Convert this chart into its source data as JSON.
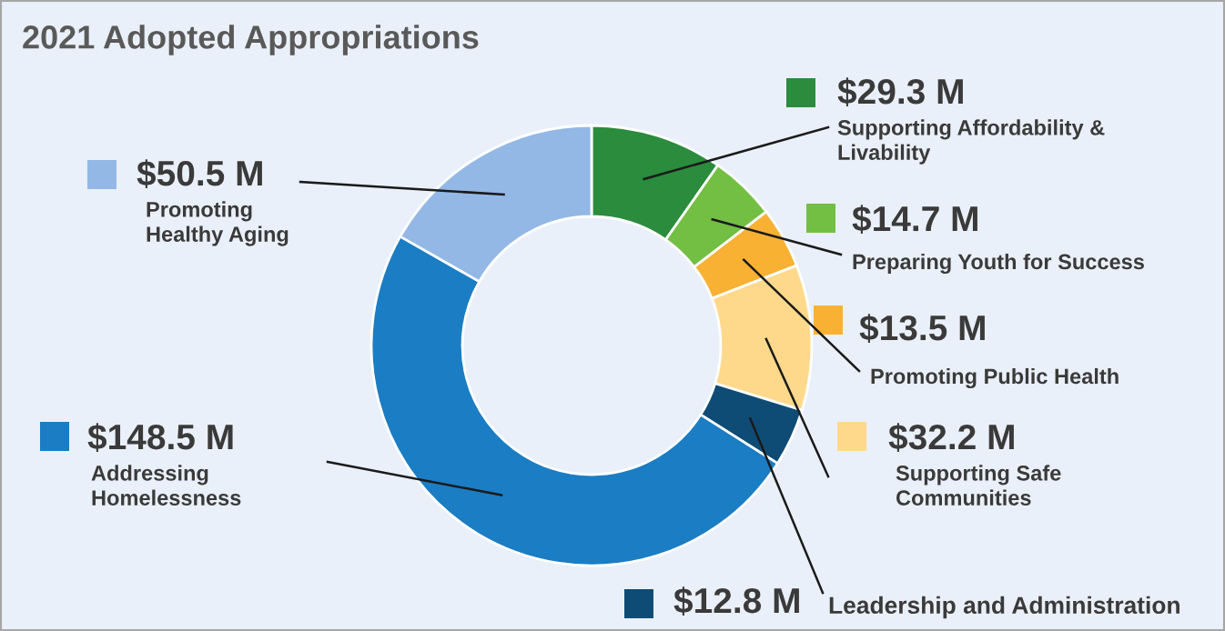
{
  "chart_data": {
    "type": "donut",
    "title": "2021 Adopted Appropriations",
    "categories": [
      "Supporting Affordability & Livability",
      "Preparing Youth for Success",
      "Promoting Public Health",
      "Supporting Safe Communities",
      "Leadership and Administration",
      "Addressing Homelessness",
      "Promoting Healthy Aging"
    ],
    "values": [
      29.3,
      14.7,
      13.5,
      32.2,
      12.8,
      148.5,
      50.5
    ],
    "colors": [
      "#2a8c3c",
      "#72bf44",
      "#f8b133",
      "#fed98b",
      "#0f4c75",
      "#1b7dc3",
      "#93b8e6"
    ],
    "value_labels": [
      "$29.3 M",
      "$14.7 M",
      "$13.5 M",
      "$32.2 M",
      "$12.8 M",
      "$148.5 M",
      "$50.5 M"
    ]
  }
}
